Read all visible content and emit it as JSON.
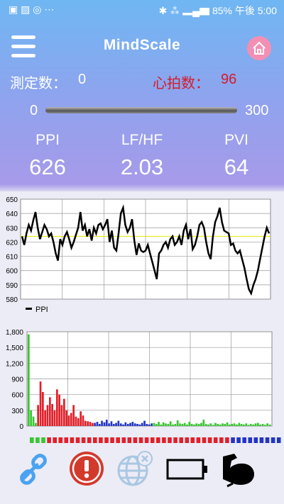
{
  "status_bar": {
    "notifications": "▣ ▨ ◎ ⋯",
    "battery": "85%",
    "time_label": "午後 5:00"
  },
  "app": {
    "title": "MindScale"
  },
  "stats": {
    "count_label": "測定数：",
    "count_value": "0",
    "hr_label": "心拍数：",
    "hr_value": "96"
  },
  "range": {
    "min": "0",
    "max": "300"
  },
  "metrics": [
    {
      "name": "PPI",
      "value": "626"
    },
    {
      "name": "LF/HF",
      "value": "2.03"
    },
    {
      "name": "PVI",
      "value": "64"
    }
  ],
  "chart_data": [
    {
      "type": "line",
      "title": "",
      "legend": [
        "PPI"
      ],
      "legend_placement": "bottom-left",
      "ylim": [
        580,
        650
      ],
      "y_ticks": [
        "650",
        "640",
        "630",
        "620",
        "610",
        "600",
        "590",
        "580"
      ],
      "reference_line": 624,
      "series": [
        {
          "name": "PPI",
          "values": [
            624,
            618,
            626,
            632,
            628,
            635,
            641,
            630,
            622,
            627,
            632,
            629,
            624,
            626,
            620,
            612,
            607,
            622,
            618,
            624,
            627,
            622,
            616,
            620,
            625,
            630,
            641,
            628,
            632,
            624,
            629,
            621,
            630,
            626,
            632,
            633,
            629,
            632,
            636,
            620,
            628,
            616,
            614,
            626,
            640,
            644,
            632,
            627,
            630,
            636,
            621,
            611,
            619,
            614,
            613,
            614,
            618,
            612,
            606,
            600,
            594,
            612,
            614,
            618,
            620,
            616,
            622,
            624,
            618,
            620,
            624,
            618,
            628,
            632,
            622,
            629,
            615,
            618,
            624,
            632,
            634,
            630,
            620,
            612,
            608,
            624,
            634,
            638,
            644,
            634,
            628,
            627,
            626,
            618,
            619,
            614,
            612,
            614,
            608,
            602,
            594,
            587,
            584,
            590,
            594,
            600,
            608,
            616,
            624,
            630,
            626
          ]
        }
      ],
      "grid": true
    },
    {
      "type": "bar",
      "title": "",
      "ylim": [
        0,
        1800
      ],
      "y_ticks": [
        "1,800",
        "1,500",
        "1,200",
        "900",
        "600",
        "300",
        "0"
      ],
      "series": [
        {
          "color": "#39c631",
          "values": [
            1750,
            300,
            180,
            60
          ]
        },
        {
          "color": "#e0202a",
          "values": [
            400,
            850,
            650,
            300,
            400,
            550,
            420,
            300,
            700,
            600,
            400,
            520,
            300,
            200,
            250,
            400,
            180,
            150,
            280,
            200,
            100,
            90,
            80,
            60
          ]
        },
        {
          "color": "#2334c6",
          "values": [
            60,
            80,
            40,
            100,
            70,
            120,
            50,
            90,
            40,
            60,
            100,
            50,
            30,
            70,
            40,
            60,
            80,
            50,
            40,
            30,
            60,
            100,
            40,
            30,
            50
          ]
        },
        {
          "color": "#39c631",
          "values": [
            60,
            40,
            80,
            30,
            70,
            50,
            40,
            90,
            30,
            40,
            110,
            50,
            40,
            60,
            30,
            80,
            40,
            30,
            50,
            40,
            60,
            120,
            40,
            30,
            50,
            20,
            60,
            40,
            30,
            50,
            40,
            70,
            30,
            40,
            50,
            30,
            60,
            40,
            30,
            50,
            20,
            40,
            30,
            50,
            60,
            30,
            40,
            20,
            50,
            30
          ]
        }
      ],
      "grid": true
    }
  ],
  "indicator_strip": {
    "colors": [
      "#39c631",
      "#39c631",
      "#39c631",
      "#e0202a",
      "#e0202a",
      "#e0202a",
      "#e0202a",
      "#e0202a",
      "#e0202a",
      "#e0202a",
      "#e0202a",
      "#e0202a",
      "#e0202a",
      "#e0202a",
      "#e0202a",
      "#e0202a",
      "#e0202a",
      "#e0202a",
      "#e0202a",
      "#e0202a",
      "#e0202a",
      "#e0202a",
      "#e0202a",
      "#e0202a",
      "#e0202a",
      "#e0202a",
      "#e0202a",
      "#e0202a",
      "#e0202a",
      "#e0202a",
      "#e0202a",
      "#e0202a",
      "#e0202a",
      "#e0202a",
      "#e0202a",
      "#2334c6",
      "#2334c6",
      "#2334c6",
      "#2334c6",
      "#2334c6",
      "#2334c6",
      "#2334c6",
      "#2334c6",
      "#2334c6"
    ]
  },
  "toolbar": {
    "icons": [
      "link-icon",
      "alert-icon",
      "globe-disconnected-icon",
      "battery-icon",
      "arm-strength-icon"
    ]
  }
}
